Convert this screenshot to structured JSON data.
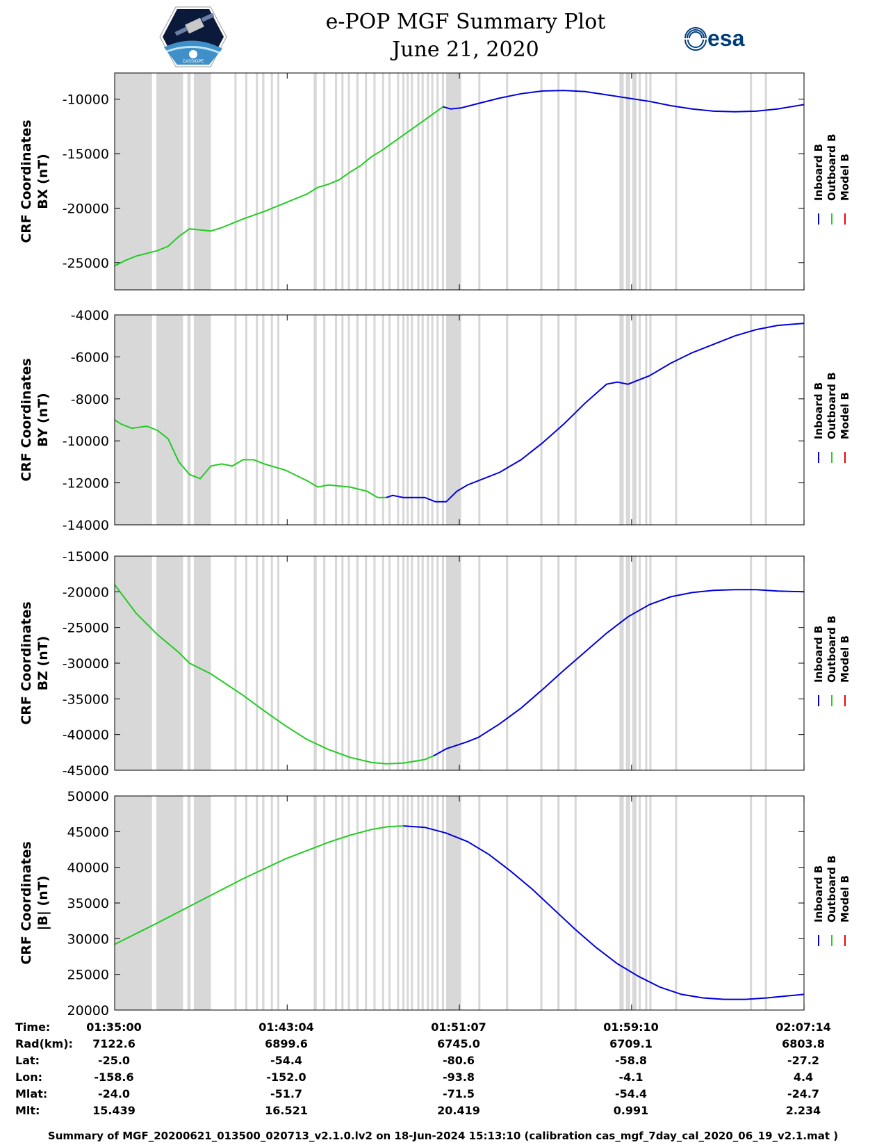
{
  "header": {
    "title": "e-POP MGF Summary Plot",
    "date": "June 21, 2020",
    "cassiope_logo_text": "CASSIOPE",
    "esa_logo_text": "esa"
  },
  "chart_data": {
    "type": "line",
    "xaxis": {
      "range_min": [
        0,
        32.23
      ],
      "tick_minutes": [
        0,
        8.067,
        16.117,
        24.167,
        32.233
      ],
      "tick_labels": [
        "01:35:00",
        "01:43:04",
        "01:51:07",
        "01:59:10",
        "02:07:14"
      ]
    },
    "shaded_intervals_min": [
      [
        0,
        1.75
      ],
      [
        1.95,
        3.2
      ],
      [
        3.4,
        3.55
      ],
      [
        3.7,
        4.5
      ],
      [
        5.6,
        5.7
      ],
      [
        6.1,
        6.2
      ],
      [
        6.6,
        6.7
      ],
      [
        6.9,
        7.0
      ],
      [
        7.3,
        7.4
      ],
      [
        7.6,
        7.7
      ],
      [
        9.3,
        9.45
      ],
      [
        9.75,
        9.85
      ],
      [
        10.3,
        10.4
      ],
      [
        10.6,
        10.7
      ],
      [
        10.9,
        11.0
      ],
      [
        11.3,
        11.4
      ],
      [
        11.7,
        11.8
      ],
      [
        12.1,
        12.2
      ],
      [
        12.5,
        12.6
      ],
      [
        12.8,
        12.9
      ],
      [
        13.2,
        13.3
      ],
      [
        13.45,
        13.55
      ],
      [
        13.65,
        13.75
      ],
      [
        13.85,
        13.95
      ],
      [
        14.15,
        14.25
      ],
      [
        14.35,
        14.45
      ],
      [
        14.6,
        14.7
      ],
      [
        14.8,
        14.9
      ],
      [
        15.05,
        15.15
      ],
      [
        15.3,
        15.4
      ],
      [
        15.5,
        16.2
      ],
      [
        17.0,
        17.1
      ],
      [
        18.3,
        18.4
      ],
      [
        19.9,
        20.0
      ],
      [
        20.7,
        20.8
      ],
      [
        21.5,
        21.6
      ],
      [
        23.6,
        23.8
      ],
      [
        23.9,
        24.1
      ],
      [
        24.2,
        24.4
      ],
      [
        24.5,
        24.6
      ],
      [
        24.8,
        24.9
      ],
      [
        25.0,
        25.1
      ],
      [
        26.2,
        26.3
      ],
      [
        29.7,
        29.8
      ],
      [
        30.4,
        30.5
      ]
    ],
    "legend": [
      {
        "label": "Inboard B",
        "color": "#0000dd"
      },
      {
        "label": "Outboard B",
        "color": "#22cc22"
      },
      {
        "label": "Model B",
        "color": "#ee0000"
      }
    ],
    "panels": [
      {
        "ylabel_line1": "CRF Coordinates",
        "ylabel_line2": "BX (nT)",
        "ylim": [
          -27500,
          -7600
        ],
        "yticks": [
          -25000,
          -20000,
          -15000,
          -10000
        ],
        "ytick_labels": [
          "-25000",
          "-20000",
          "-15000",
          "-10000"
        ],
        "outboard": [
          [
            0,
            -25300
          ],
          [
            0.5,
            -24800
          ],
          [
            1,
            -24400
          ],
          [
            2,
            -23900
          ],
          [
            2.5,
            -23500
          ],
          [
            3,
            -22600
          ],
          [
            3.5,
            -21900
          ],
          [
            4,
            -22000
          ],
          [
            4.5,
            -22100
          ],
          [
            5,
            -21800
          ],
          [
            6,
            -21000
          ],
          [
            7,
            -20300
          ],
          [
            8,
            -19500
          ],
          [
            9,
            -18700
          ],
          [
            9.5,
            -18100
          ],
          [
            10,
            -17800
          ],
          [
            10.5,
            -17400
          ],
          [
            11,
            -16700
          ],
          [
            11.5,
            -16100
          ],
          [
            12,
            -15300
          ],
          [
            12.5,
            -14700
          ],
          [
            13,
            -14000
          ],
          [
            14,
            -12600
          ],
          [
            15,
            -11200
          ],
          [
            15.35,
            -10700
          ]
        ],
        "inboard": [
          [
            15.35,
            -10700
          ],
          [
            15.7,
            -10900
          ],
          [
            16.2,
            -10800
          ],
          [
            17,
            -10400
          ],
          [
            18,
            -9900
          ],
          [
            19,
            -9500
          ],
          [
            20,
            -9250
          ],
          [
            21,
            -9200
          ],
          [
            22,
            -9300
          ],
          [
            23,
            -9600
          ],
          [
            24,
            -9900
          ],
          [
            25,
            -10200
          ],
          [
            26,
            -10600
          ],
          [
            27,
            -10900
          ],
          [
            28,
            -11100
          ],
          [
            29,
            -11150
          ],
          [
            30,
            -11100
          ],
          [
            31,
            -10900
          ],
          [
            32.23,
            -10500
          ]
        ]
      },
      {
        "ylabel_line1": "CRF Coordinates",
        "ylabel_line2": "BY (nT)",
        "ylim": [
          -14000,
          -4000
        ],
        "yticks": [
          -14000,
          -12000,
          -10000,
          -8000,
          -6000,
          -4000
        ],
        "ytick_labels": [
          "-14000",
          "-12000",
          "-10000",
          "-8000",
          "-6000",
          "-4000"
        ],
        "outboard": [
          [
            0,
            -9000
          ],
          [
            0.3,
            -9200
          ],
          [
            0.8,
            -9400
          ],
          [
            1.5,
            -9300
          ],
          [
            2,
            -9500
          ],
          [
            2.5,
            -9900
          ],
          [
            3,
            -11000
          ],
          [
            3.5,
            -11600
          ],
          [
            4,
            -11800
          ],
          [
            4.5,
            -11200
          ],
          [
            5,
            -11100
          ],
          [
            5.5,
            -11200
          ],
          [
            6,
            -10900
          ],
          [
            6.5,
            -10900
          ],
          [
            7,
            -11100
          ],
          [
            8,
            -11400
          ],
          [
            9,
            -11900
          ],
          [
            9.5,
            -12200
          ],
          [
            10,
            -12100
          ],
          [
            11,
            -12200
          ],
          [
            11.8,
            -12400
          ],
          [
            12.3,
            -12700
          ],
          [
            12.7,
            -12700
          ]
        ],
        "inboard": [
          [
            12.7,
            -12700
          ],
          [
            13,
            -12600
          ],
          [
            13.5,
            -12700
          ],
          [
            14,
            -12700
          ],
          [
            14.5,
            -12700
          ],
          [
            15,
            -12900
          ],
          [
            15.5,
            -12900
          ],
          [
            16,
            -12400
          ],
          [
            16.5,
            -12100
          ],
          [
            17,
            -11900
          ],
          [
            18,
            -11500
          ],
          [
            19,
            -10900
          ],
          [
            20,
            -10100
          ],
          [
            21,
            -9200
          ],
          [
            22,
            -8200
          ],
          [
            23,
            -7300
          ],
          [
            23.5,
            -7200
          ],
          [
            24,
            -7300
          ],
          [
            25,
            -6900
          ],
          [
            26,
            -6300
          ],
          [
            27,
            -5800
          ],
          [
            28,
            -5400
          ],
          [
            29,
            -5000
          ],
          [
            30,
            -4700
          ],
          [
            31,
            -4500
          ],
          [
            32.23,
            -4400
          ]
        ]
      },
      {
        "ylabel_line1": "CRF Coordinates",
        "ylabel_line2": "BZ (nT)",
        "ylim": [
          -45000,
          -15000
        ],
        "yticks": [
          -45000,
          -40000,
          -35000,
          -30000,
          -25000,
          -20000,
          -15000
        ],
        "ytick_labels": [
          "-45000",
          "-40000",
          "-35000",
          "-30000",
          "-25000",
          "-20000",
          "-15000"
        ],
        "outboard": [
          [
            0,
            -19000
          ],
          [
            1,
            -23000
          ],
          [
            2,
            -26000
          ],
          [
            3,
            -28500
          ],
          [
            3.5,
            -30000
          ],
          [
            4.5,
            -31500
          ],
          [
            6,
            -34500
          ],
          [
            7,
            -36700
          ],
          [
            8,
            -38800
          ],
          [
            9,
            -40700
          ],
          [
            10,
            -42100
          ],
          [
            11,
            -43200
          ],
          [
            12,
            -43900
          ],
          [
            12.7,
            -44100
          ],
          [
            13.5,
            -44000
          ],
          [
            14.5,
            -43500
          ],
          [
            14.9,
            -43000
          ]
        ],
        "inboard": [
          [
            14.9,
            -43000
          ],
          [
            15.5,
            -42000
          ],
          [
            16,
            -41500
          ],
          [
            16.5,
            -41000
          ],
          [
            17,
            -40400
          ],
          [
            18,
            -38500
          ],
          [
            19,
            -36300
          ],
          [
            20,
            -33700
          ],
          [
            21,
            -31000
          ],
          [
            22,
            -28400
          ],
          [
            23,
            -25800
          ],
          [
            24,
            -23500
          ],
          [
            25,
            -21800
          ],
          [
            26,
            -20700
          ],
          [
            27,
            -20100
          ],
          [
            28,
            -19800
          ],
          [
            29,
            -19700
          ],
          [
            30,
            -19700
          ],
          [
            31,
            -19900
          ],
          [
            32.23,
            -20000
          ]
        ]
      },
      {
        "ylabel_line1": "CRF Coordinates",
        "ylabel_line2": "|B| (nT)",
        "ylim": [
          20000,
          50000
        ],
        "yticks": [
          20000,
          25000,
          30000,
          35000,
          40000,
          45000,
          50000
        ],
        "ytick_labels": [
          "20000",
          "25000",
          "30000",
          "35000",
          "40000",
          "45000",
          "50000"
        ],
        "outboard": [
          [
            0,
            29200
          ],
          [
            2,
            32200
          ],
          [
            4,
            35300
          ],
          [
            6,
            38400
          ],
          [
            8,
            41200
          ],
          [
            10,
            43500
          ],
          [
            11,
            44500
          ],
          [
            12,
            45300
          ],
          [
            12.8,
            45700
          ],
          [
            13.5,
            45800
          ]
        ],
        "inboard": [
          [
            13.5,
            45800
          ],
          [
            14.5,
            45600
          ],
          [
            15.5,
            44800
          ],
          [
            16.5,
            43600
          ],
          [
            17.5,
            41800
          ],
          [
            18.5,
            39500
          ],
          [
            19.5,
            37000
          ],
          [
            20.5,
            34200
          ],
          [
            21.5,
            31400
          ],
          [
            22.5,
            28800
          ],
          [
            23.5,
            26500
          ],
          [
            24.5,
            24700
          ],
          [
            25.5,
            23200
          ],
          [
            26.5,
            22200
          ],
          [
            27.5,
            21700
          ],
          [
            28.5,
            21500
          ],
          [
            29.5,
            21500
          ],
          [
            30.5,
            21700
          ],
          [
            31.5,
            22000
          ],
          [
            32.23,
            22200
          ]
        ]
      }
    ]
  },
  "info_table": {
    "labels": [
      "Time:",
      "Rad(km):",
      "Lat:",
      "Lon:",
      "Mlat:",
      "Mlt:"
    ],
    "columns": [
      [
        "01:35:00",
        "7122.6",
        "-25.0",
        "-158.6",
        "-24.0",
        "15.439"
      ],
      [
        "01:43:04",
        "6899.6",
        "-54.4",
        "-152.0",
        "-51.7",
        "16.521"
      ],
      [
        "01:51:07",
        "6745.0",
        "-80.6",
        "-93.8",
        "-71.5",
        "20.419"
      ],
      [
        "01:59:10",
        "6709.1",
        "-58.8",
        "-4.1",
        "-54.4",
        "0.991"
      ],
      [
        "02:07:14",
        "6803.8",
        "-27.2",
        "4.4",
        "-24.7",
        "2.234"
      ]
    ]
  },
  "footer": "Summary of MGF_20200621_013500_020713_v2.1.0.lv2 on 18-Jun-2024 15:13:10 (calibration cas_mgf_7day_cal_2020_06_19_v2.1.mat )",
  "colors": {
    "inboard": "#0000dd",
    "outboard": "#22cc22",
    "model": "#ee0000",
    "shade": "#d8d8d8"
  }
}
